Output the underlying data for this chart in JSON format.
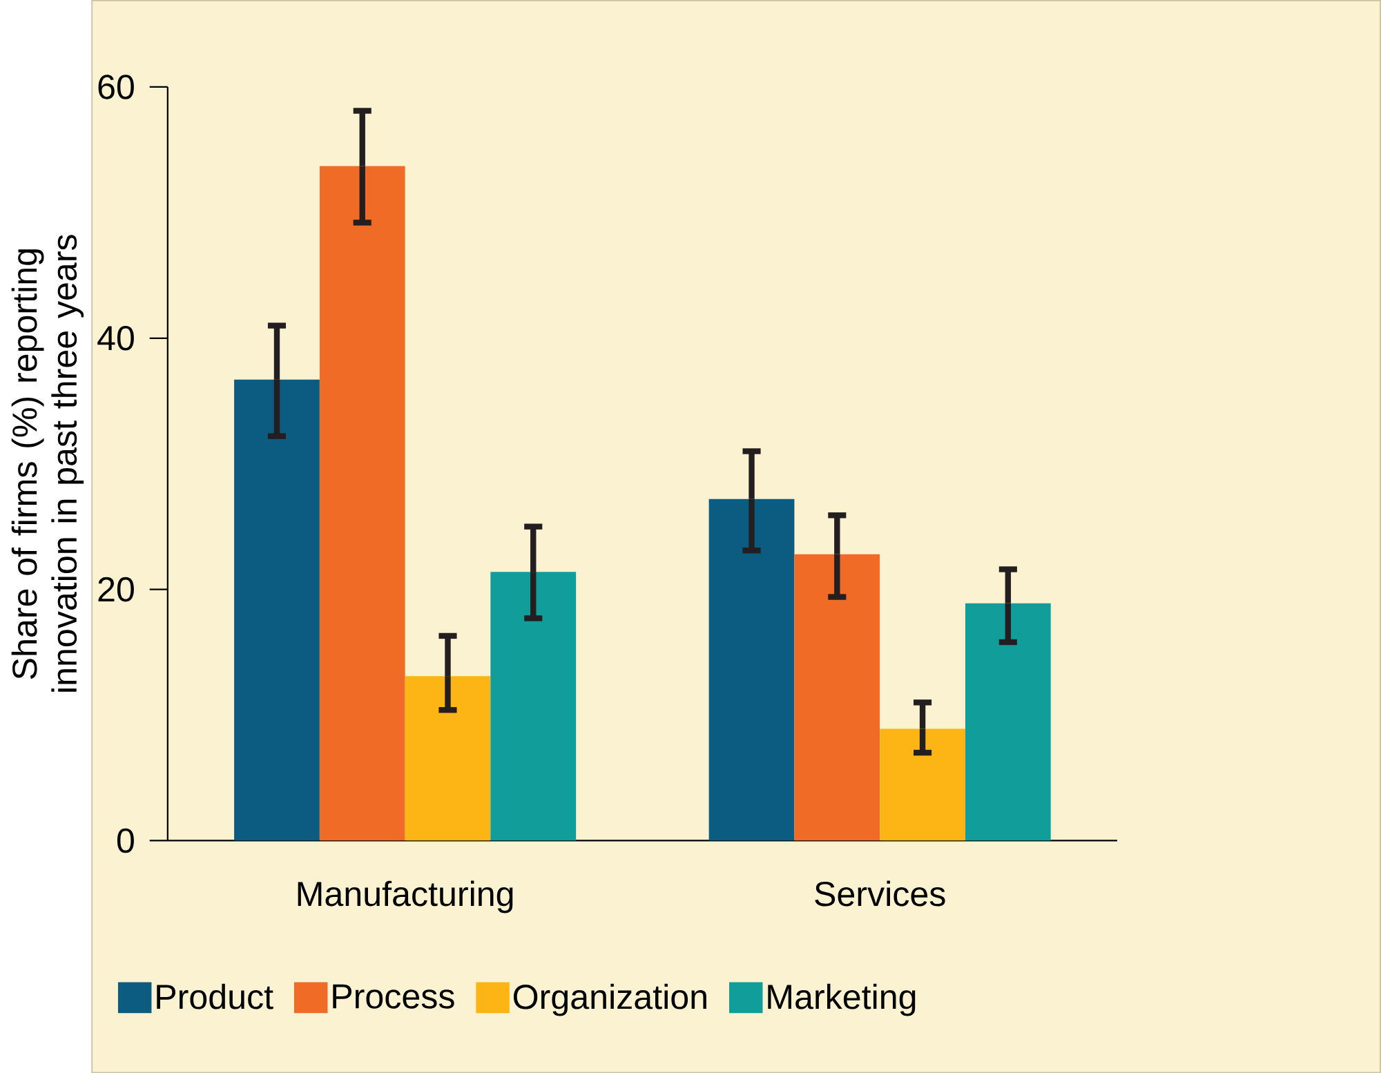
{
  "chart_data": {
    "type": "bar",
    "ylabel": "Share of firms (%) reporting innovation in past three years",
    "categories": [
      "Manufacturing",
      "Services"
    ],
    "series": [
      {
        "name": "Product",
        "color": "#0b5c80",
        "values": [
          36.7,
          27.2
        ],
        "errors": [
          [
            32.2,
            41.0
          ],
          [
            23.1,
            31.0
          ]
        ]
      },
      {
        "name": "Process",
        "color": "#f06c26",
        "values": [
          53.7,
          22.8
        ],
        "errors": [
          [
            49.2,
            58.1
          ],
          [
            19.4,
            25.9
          ]
        ]
      },
      {
        "name": "Organization",
        "color": "#fdb515",
        "values": [
          13.1,
          8.9
        ],
        "errors": [
          [
            10.4,
            16.3
          ],
          [
            7.0,
            11.0
          ]
        ]
      },
      {
        "name": "Marketing",
        "color": "#119e9b",
        "values": [
          21.4,
          18.9
        ],
        "errors": [
          [
            17.7,
            25.0
          ],
          [
            15.8,
            21.6
          ]
        ]
      }
    ],
    "ylim": [
      0,
      60
    ],
    "yticks": [
      0,
      20,
      40,
      60
    ],
    "legend": "bottom"
  }
}
